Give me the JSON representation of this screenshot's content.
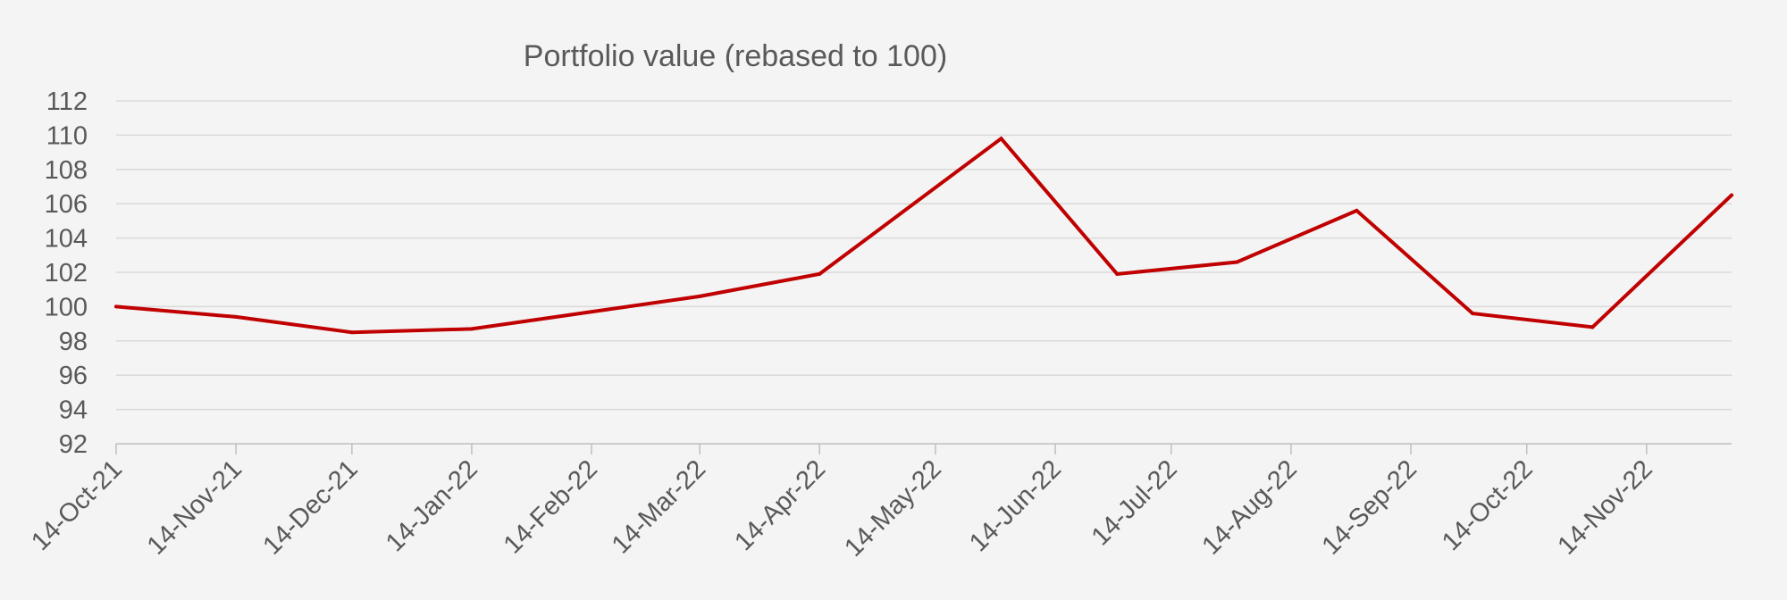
{
  "chart_data": {
    "type": "line",
    "title": "Portfolio value (rebased to 100)",
    "xlabel": "",
    "ylabel": "",
    "ylim": [
      92,
      112
    ],
    "y_ticks": [
      "92",
      "94",
      "96",
      "98",
      "100",
      "102",
      "104",
      "106",
      "108",
      "110",
      "112"
    ],
    "x_range": [
      "2021-10-14",
      "2022-12-06"
    ],
    "x_tick_dates": [
      "2021-10-14",
      "2021-11-14",
      "2021-12-14",
      "2022-01-14",
      "2022-02-14",
      "2022-03-14",
      "2022-04-14",
      "2022-05-14",
      "2022-06-14",
      "2022-07-14",
      "2022-08-14",
      "2022-09-14",
      "2022-10-14",
      "2022-11-14"
    ],
    "x_tick_labels": [
      "14-Oct-21",
      "14-Nov-21",
      "14-Dec-21",
      "14-Jan-22",
      "14-Feb-22",
      "14-Mar-22",
      "14-Apr-22",
      "14-May-22",
      "14-Jun-22",
      "14-Jul-22",
      "14-Aug-22",
      "14-Sep-22",
      "14-Oct-22",
      "14-Nov-22"
    ],
    "grid": true,
    "legend": "none",
    "series": [
      {
        "color": "#c00000",
        "x": [
          "2021-10-14",
          "2021-11-14",
          "2021-12-14",
          "2022-01-14",
          "2022-03-14",
          "2022-04-14",
          "2022-05-31",
          "2022-06-30",
          "2022-07-31",
          "2022-08-31",
          "2022-09-30",
          "2022-10-31",
          "2022-12-06"
        ],
        "y": [
          100.0,
          99.4,
          98.5,
          98.7,
          100.6,
          101.9,
          109.8,
          101.9,
          102.6,
          105.6,
          99.6,
          98.8,
          106.5
        ]
      }
    ]
  }
}
